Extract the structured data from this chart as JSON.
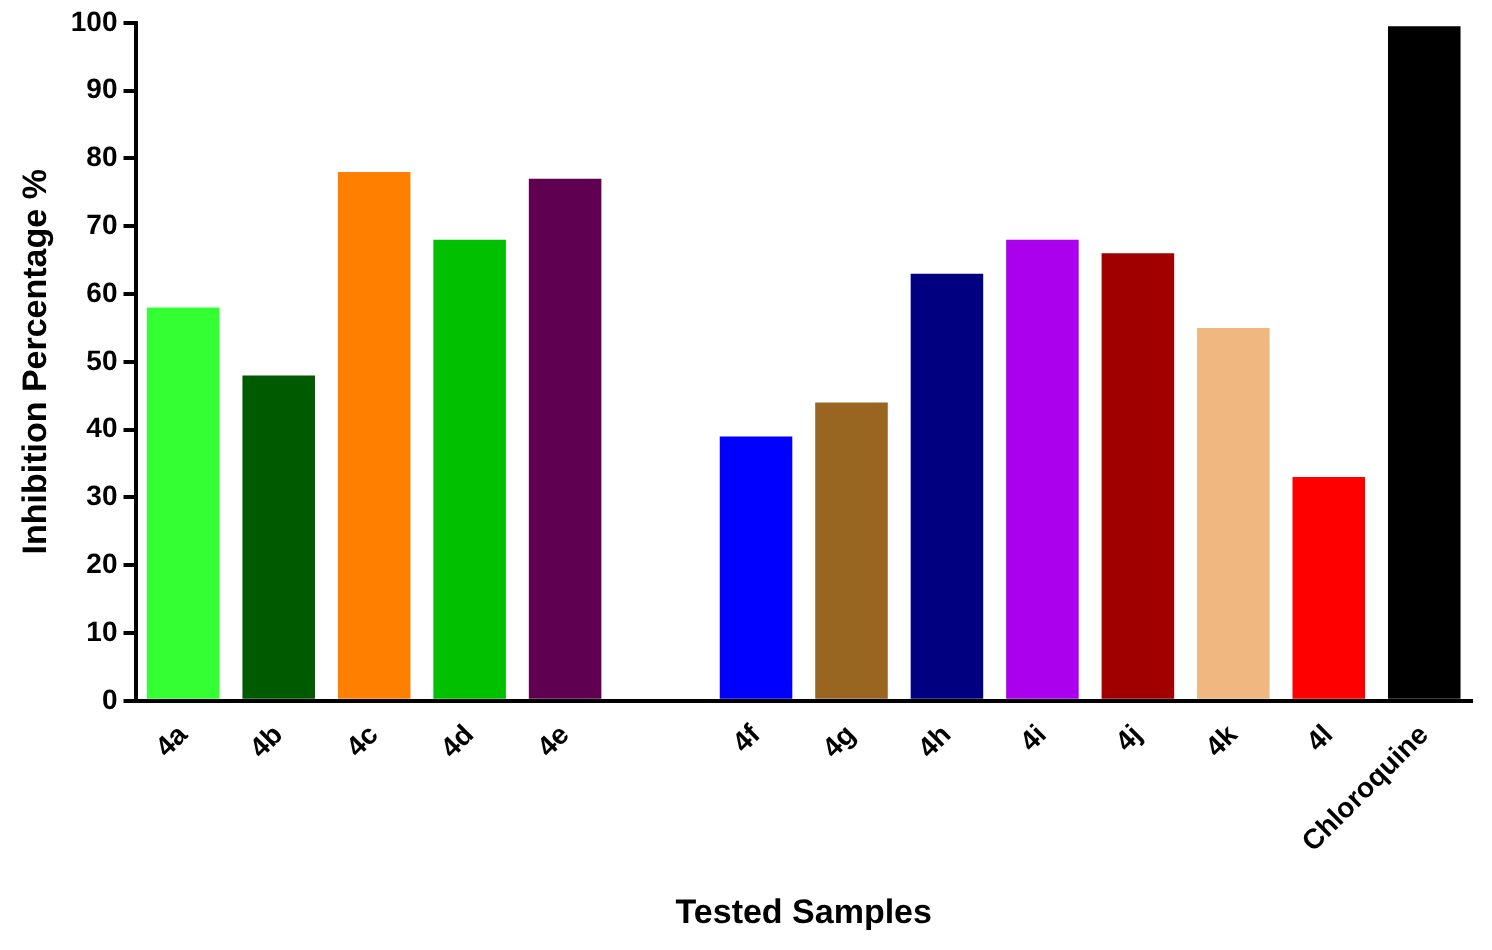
{
  "chart_data": {
    "type": "bar",
    "xlabel": "Tested Samples",
    "ylabel": "Inhibition Percentage %",
    "categories": [
      "4a",
      "4b",
      "4c",
      "4d",
      "4e",
      null,
      "4f",
      "4g",
      "4h",
      "4i",
      "4j",
      "4k",
      "4l",
      "Chloroquine"
    ],
    "values": [
      58,
      48,
      78,
      68,
      77,
      null,
      39,
      44,
      63,
      68,
      66,
      55,
      33,
      99.5
    ],
    "colors": [
      "#33ff33",
      "#005a00",
      "#ff8000",
      "#00c000",
      "#600050",
      null,
      "#0000ff",
      "#996622",
      "#000080",
      "#aa00ee",
      "#a00000",
      "#f0b880",
      "#ff0000",
      "#000000"
    ],
    "ylim": [
      0,
      100
    ],
    "yticks": [
      0,
      10,
      20,
      30,
      40,
      50,
      60,
      70,
      80,
      90,
      100
    ],
    "grid": false,
    "legend": false
  }
}
